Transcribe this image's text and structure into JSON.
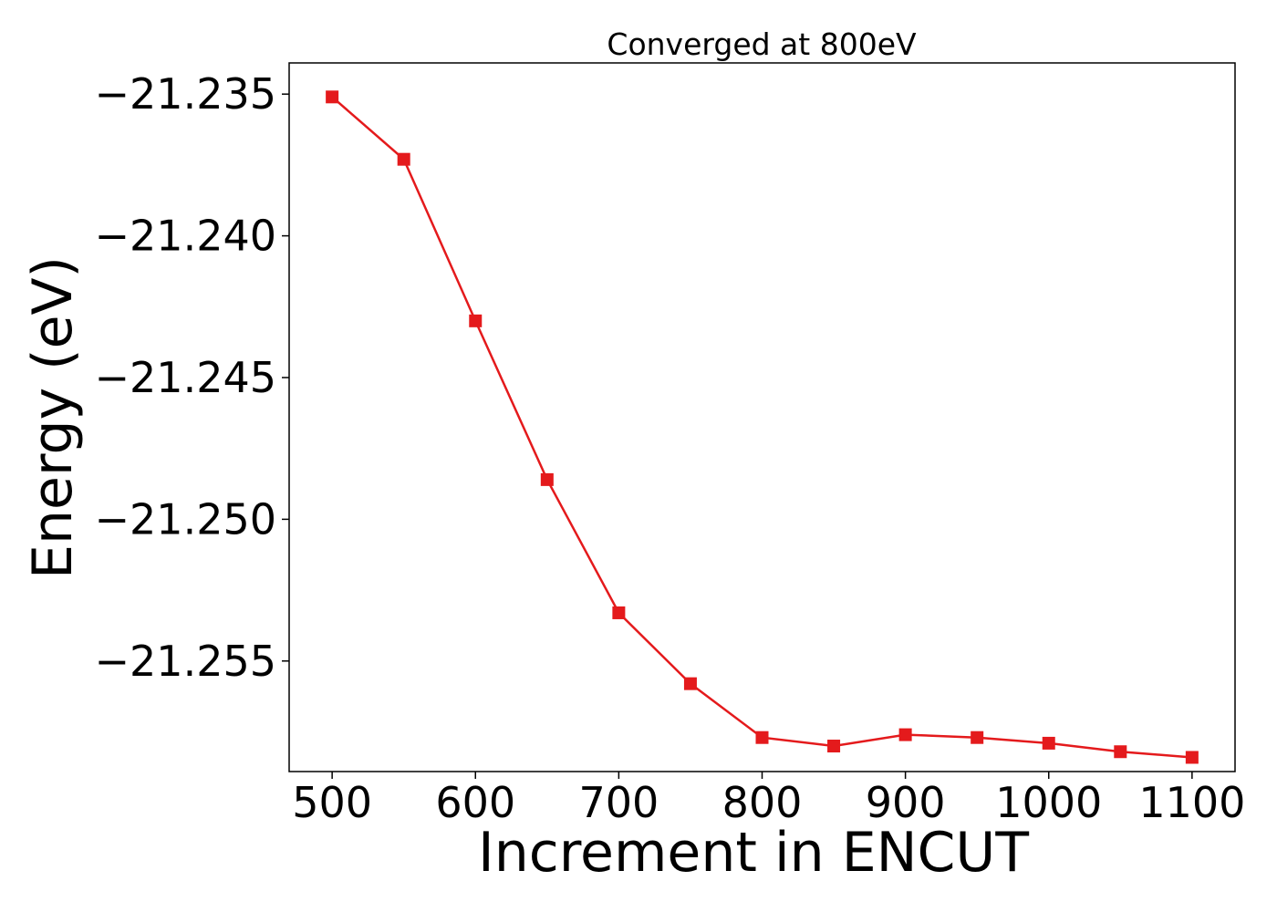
{
  "chart_data": {
    "type": "line",
    "title": "Converged at 800eV",
    "xlabel": "Increment in ENCUT",
    "ylabel": "Energy (eV)",
    "x": [
      500,
      550,
      600,
      650,
      700,
      750,
      800,
      850,
      900,
      950,
      1000,
      1050,
      1100
    ],
    "series": [
      {
        "values": [
          -21.2351,
          -21.2373,
          -21.243,
          -21.2486,
          -21.2533,
          -21.2558,
          -21.2577,
          -21.258,
          -21.2576,
          -21.2577,
          -21.2579,
          -21.2582,
          -21.2584
        ],
        "color": "#e41a1c",
        "marker": "square"
      }
    ],
    "xlim": [
      470,
      1130
    ],
    "ylim": [
      -21.2589,
      -21.2339
    ],
    "xticks": [
      500,
      600,
      700,
      800,
      900,
      1000,
      1100
    ],
    "xtick_labels": [
      "500",
      "600",
      "700",
      "800",
      "900",
      "1000",
      "1100"
    ],
    "yticks": [
      -21.235,
      -21.24,
      -21.245,
      -21.25,
      -21.255
    ],
    "ytick_labels": [
      "−21.235",
      "−21.240",
      "−21.245",
      "−21.250",
      "−21.255"
    ],
    "grid": false,
    "legend": false
  }
}
